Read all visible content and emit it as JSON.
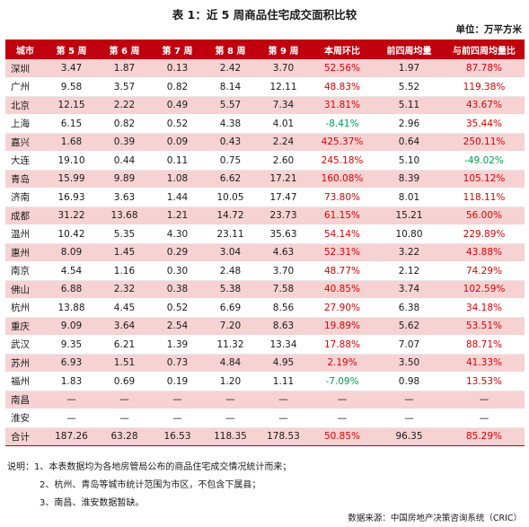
{
  "title": "表 1：近 5 周商品住宅成交面积比较",
  "unit": "单位：万平方米",
  "headers": [
    "城市",
    "第 5 周",
    "第 6 周",
    "第 7 周",
    "第 8 周",
    "第 9 周",
    "本周环比",
    "前四周均量",
    "与前四周均量比"
  ],
  "rows": [
    {
      "city": "深圳",
      "w5": "3.47",
      "w6": "1.87",
      "w7": "0.13",
      "w8": "2.42",
      "w9": "3.70",
      "wow": "52.56%",
      "avg4": "1.97",
      "vs_avg": "87.78%",
      "wow_dir": "up",
      "vs_dir": "up",
      "shade": "pink"
    },
    {
      "city": "广州",
      "w5": "9.58",
      "w6": "3.57",
      "w7": "0.82",
      "w8": "8.14",
      "w9": "12.11",
      "wow": "48.83%",
      "avg4": "5.52",
      "vs_avg": "119.38%",
      "wow_dir": "up",
      "vs_dir": "up",
      "shade": "white"
    },
    {
      "city": "北京",
      "w5": "12.15",
      "w6": "2.22",
      "w7": "0.49",
      "w8": "5.57",
      "w9": "7.34",
      "wow": "31.81%",
      "avg4": "5.11",
      "vs_avg": "43.67%",
      "wow_dir": "up",
      "vs_dir": "up",
      "shade": "pink"
    },
    {
      "city": "上海",
      "w5": "6.15",
      "w6": "0.82",
      "w7": "0.52",
      "w8": "4.38",
      "w9": "4.01",
      "wow": "-8.41%",
      "avg4": "2.96",
      "vs_avg": "35.44%",
      "wow_dir": "down",
      "vs_dir": "up",
      "shade": "white"
    },
    {
      "city": "嘉兴",
      "w5": "1.68",
      "w6": "0.39",
      "w7": "0.09",
      "w8": "0.43",
      "w9": "2.24",
      "wow": "425.37%",
      "avg4": "0.64",
      "vs_avg": "250.11%",
      "wow_dir": "up",
      "vs_dir": "up",
      "shade": "pink"
    },
    {
      "city": "大连",
      "w5": "19.10",
      "w6": "0.44",
      "w7": "0.11",
      "w8": "0.75",
      "w9": "2.60",
      "wow": "245.18%",
      "avg4": "5.10",
      "vs_avg": "-49.02%",
      "wow_dir": "up",
      "vs_dir": "down",
      "shade": "white"
    },
    {
      "city": "青岛",
      "w5": "15.99",
      "w6": "9.89",
      "w7": "1.08",
      "w8": "6.62",
      "w9": "17.21",
      "wow": "160.08%",
      "avg4": "8.39",
      "vs_avg": "105.12%",
      "wow_dir": "up",
      "vs_dir": "up",
      "shade": "pink"
    },
    {
      "city": "济南",
      "w5": "16.93",
      "w6": "3.63",
      "w7": "1.44",
      "w8": "10.05",
      "w9": "17.47",
      "wow": "73.80%",
      "avg4": "8.01",
      "vs_avg": "118.11%",
      "wow_dir": "up",
      "vs_dir": "up",
      "shade": "white"
    },
    {
      "city": "成都",
      "w5": "31.22",
      "w6": "13.68",
      "w7": "1.21",
      "w8": "14.72",
      "w9": "23.73",
      "wow": "61.15%",
      "avg4": "15.21",
      "vs_avg": "56.00%",
      "wow_dir": "up",
      "vs_dir": "up",
      "shade": "pink"
    },
    {
      "city": "温州",
      "w5": "10.42",
      "w6": "5.35",
      "w7": "4.30",
      "w8": "23.11",
      "w9": "35.63",
      "wow": "54.14%",
      "avg4": "10.80",
      "vs_avg": "229.89%",
      "wow_dir": "up",
      "vs_dir": "up",
      "shade": "white"
    },
    {
      "city": "惠州",
      "w5": "8.09",
      "w6": "1.45",
      "w7": "0.29",
      "w8": "3.04",
      "w9": "4.63",
      "wow": "52.31%",
      "avg4": "3.22",
      "vs_avg": "43.88%",
      "wow_dir": "up",
      "vs_dir": "up",
      "shade": "pink"
    },
    {
      "city": "南京",
      "w5": "4.54",
      "w6": "1.16",
      "w7": "0.30",
      "w8": "2.48",
      "w9": "3.70",
      "wow": "48.77%",
      "avg4": "2.12",
      "vs_avg": "74.29%",
      "wow_dir": "up",
      "vs_dir": "up",
      "shade": "white"
    },
    {
      "city": "佛山",
      "w5": "6.88",
      "w6": "2.32",
      "w7": "0.38",
      "w8": "5.38",
      "w9": "7.58",
      "wow": "40.85%",
      "avg4": "3.74",
      "vs_avg": "102.59%",
      "wow_dir": "up",
      "vs_dir": "up",
      "shade": "pink"
    },
    {
      "city": "杭州",
      "w5": "13.88",
      "w6": "4.45",
      "w7": "0.52",
      "w8": "6.69",
      "w9": "8.56",
      "wow": "27.90%",
      "avg4": "6.38",
      "vs_avg": "34.18%",
      "wow_dir": "up",
      "vs_dir": "up",
      "shade": "white"
    },
    {
      "city": "重庆",
      "w5": "9.09",
      "w6": "3.64",
      "w7": "2.54",
      "w8": "7.20",
      "w9": "8.63",
      "wow": "19.89%",
      "avg4": "5.62",
      "vs_avg": "53.51%",
      "wow_dir": "up",
      "vs_dir": "up",
      "shade": "pink"
    },
    {
      "city": "武汉",
      "w5": "9.35",
      "w6": "6.21",
      "w7": "1.39",
      "w8": "11.32",
      "w9": "13.34",
      "wow": "17.88%",
      "avg4": "7.07",
      "vs_avg": "88.71%",
      "wow_dir": "up",
      "vs_dir": "up",
      "shade": "white"
    },
    {
      "city": "苏州",
      "w5": "6.93",
      "w6": "1.51",
      "w7": "0.73",
      "w8": "4.84",
      "w9": "4.95",
      "wow": "2.19%",
      "avg4": "3.50",
      "vs_avg": "41.33%",
      "wow_dir": "up",
      "vs_dir": "up",
      "shade": "pink"
    },
    {
      "city": "福州",
      "w5": "1.83",
      "w6": "0.69",
      "w7": "0.19",
      "w8": "1.20",
      "w9": "1.11",
      "wow": "-7.09%",
      "avg4": "0.98",
      "vs_avg": "13.53%",
      "wow_dir": "down",
      "vs_dir": "up",
      "shade": "white"
    },
    {
      "city": "南昌",
      "w5": "—",
      "w6": "—",
      "w7": "—",
      "w8": "—",
      "w9": "—",
      "wow": "—",
      "avg4": "—",
      "vs_avg": "—",
      "wow_dir": "none",
      "vs_dir": "none",
      "shade": "pink"
    },
    {
      "city": "淮安",
      "w5": "—",
      "w6": "—",
      "w7": "—",
      "w8": "—",
      "w9": "—",
      "wow": "—",
      "avg4": "—",
      "vs_avg": "—",
      "wow_dir": "none",
      "vs_dir": "none",
      "shade": "white"
    }
  ],
  "total": {
    "city": "合计",
    "w5": "187.26",
    "w6": "63.28",
    "w7": "16.53",
    "w8": "118.35",
    "w9": "178.53",
    "wow": "50.85%",
    "avg4": "96.35",
    "vs_avg": "85.29%",
    "wow_dir": "up",
    "vs_dir": "up"
  },
  "notes": {
    "line1": "说明：1、本表数据均为各地房管局公布的商品住宅成交情况统计而来；",
    "line2": "2、杭州、青岛等城市统计范围为市区，不包含下属县；",
    "line3": "3、南昌、淮安数据暂缺。"
  },
  "source": "数据来源：中国房地产决策咨询系统（CRIC）",
  "colors": {
    "header_bg": "#c0000e",
    "band_bg": "#f7d2d3",
    "positive": "#e00000",
    "negative": "#00a050"
  }
}
